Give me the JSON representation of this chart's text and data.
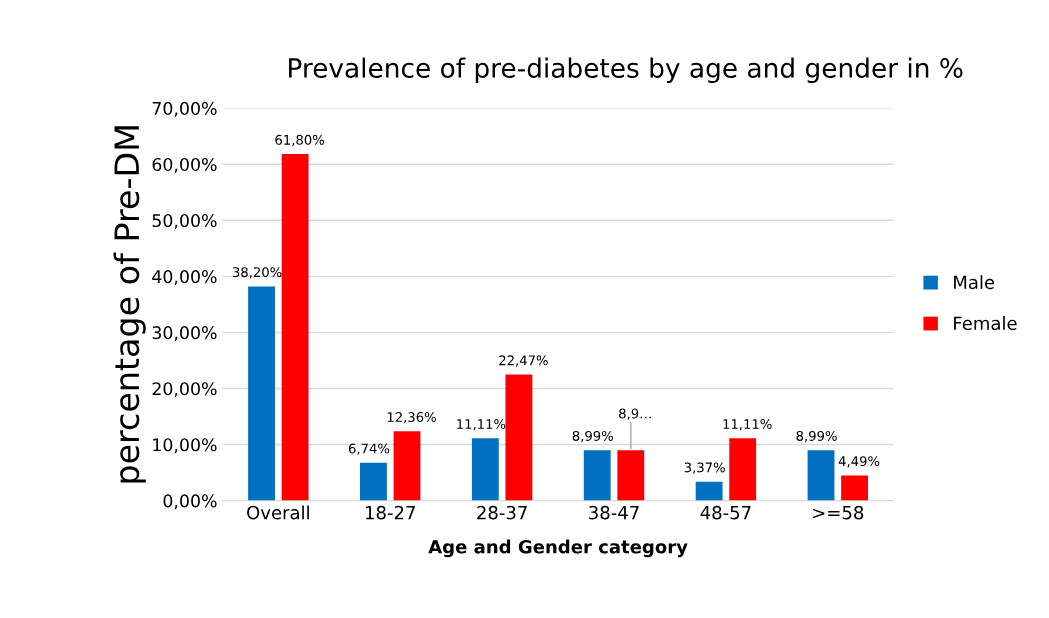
{
  "chart_data": {
    "type": "bar",
    "title": "Prevalence of pre-diabetes by age and gender in %",
    "xlabel": "Age and Gender category",
    "ylabel": "percentage of Pre-DM",
    "categories": [
      "Overall",
      "18-27",
      "28-37",
      "38-47",
      "48-57",
      ">=58"
    ],
    "series": [
      {
        "name": "Male",
        "color": "#0070c0",
        "values": [
          38.2,
          6.74,
          11.11,
          8.99,
          3.37,
          8.99
        ],
        "value_labels": [
          "38,20%",
          "6,74%",
          "11,11%",
          "8,99%",
          "3,37%",
          "8,99%"
        ]
      },
      {
        "name": "Female",
        "color": "#ff0000",
        "values": [
          61.8,
          12.36,
          22.47,
          8.99,
          11.11,
          4.49
        ],
        "value_labels": [
          "61,80%",
          "12,36%",
          "22,47%",
          "8,9…",
          "11,11%",
          "4,49%"
        ]
      }
    ],
    "ylim": [
      0,
      70
    ],
    "yticks": [
      {
        "value": 0,
        "label": "0,00%"
      },
      {
        "value": 10,
        "label": "10,00%"
      },
      {
        "value": 20,
        "label": "20,00%"
      },
      {
        "value": 30,
        "label": "30,00%"
      },
      {
        "value": 40,
        "label": "40,00%"
      },
      {
        "value": 50,
        "label": "50,00%"
      },
      {
        "value": 60,
        "label": "60,00%"
      },
      {
        "value": 70,
        "label": "70,00%"
      }
    ],
    "grid": "y",
    "legend": "right"
  }
}
